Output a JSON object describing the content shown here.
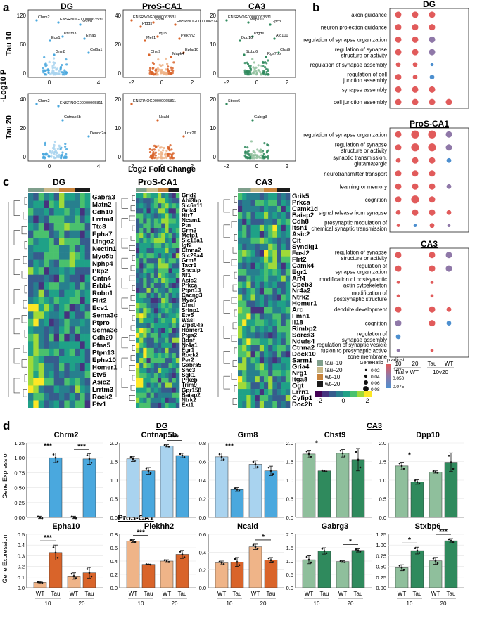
{
  "colors": {
    "dg": "#4aa8de",
    "dg_light": "#a9d3ef",
    "pros": "#d9642a",
    "pros_light": "#efb488",
    "ca3": "#2f8a5d",
    "ca3_light": "#8fbf9c",
    "red": "#e15b5b",
    "purple": "#8f78a8",
    "blue": "#4d8fcf"
  },
  "panels": {
    "a": "a",
    "b": "b",
    "c": "c",
    "d": "d"
  },
  "volcano": {
    "columns": [
      "DG",
      "ProS-CA1",
      "CA3"
    ],
    "rows": [
      "Tau 10",
      "Tau 20"
    ],
    "ylabel": "-Log10 P",
    "xlabel": "Log2 Fold Change",
    "y_ticks_top": [
      [
        "0",
        "60",
        "120"
      ],
      [
        "0",
        "20",
        "40"
      ],
      [
        "0",
        "10",
        "20"
      ]
    ],
    "y_ticks_bottom": [
      [
        "0",
        "20",
        "40"
      ],
      [
        "0",
        "10",
        "20"
      ],
      [
        "0",
        "10",
        "20"
      ]
    ],
    "x_ticks": [
      [
        "0",
        "4"
      ],
      [
        "-2",
        "0",
        "2"
      ],
      [
        "-2",
        "0",
        "2"
      ]
    ],
    "labels": {
      "dg_top": [
        "Chrm2",
        "Pdzrn3",
        "Col6a1",
        "ENSRNOG00000063531",
        "Efna5",
        "Grm8",
        "Sorm1",
        "Ece1"
      ],
      "pros_top": [
        "ENSRNOG00000063531",
        "Iqub",
        "Epha10",
        "Sorm1",
        "Plekhh2",
        "Chst9",
        "ENSRNOG00000065142",
        "Mell1",
        "Mapk4",
        "Ptgds"
      ],
      "ca3_top": [
        "ENSRNOG00000063531",
        "Ptgds",
        "Chst9",
        "Mapk10",
        "Atg101",
        "Stxbp6",
        "Gpc3",
        "Dpp10",
        "Rgs7bp"
      ],
      "dg_bottom": [
        "Chrm2",
        "Cntnap5b",
        "Dennd2a",
        "ENSRNOG00000065811"
      ],
      "pros_bottom": [
        "ENSRNOG00000065811",
        "Ncald",
        "Lrrc26"
      ],
      "ca3_bottom": [
        "Stxbp6",
        "Gabrg3"
      ]
    }
  },
  "go": {
    "sections": [
      {
        "title": "DG",
        "terms": [
          "axon guidance",
          "neuron projection guidance",
          "regulation of synapse organization",
          "regulation of synapse\nstructure or activity",
          "regulation of synapse assembly",
          "regulation of cell\njunction assembly",
          "synapse assembly",
          "cell junction assembly"
        ],
        "dots": [
          [
            "r3",
            "r3",
            "r3",
            null
          ],
          [
            "r3",
            "r3",
            "r3",
            null
          ],
          [
            "r3",
            "r3",
            "p3",
            null
          ],
          [
            "r3",
            "r3",
            "p3",
            null
          ],
          [
            "r2",
            "r2",
            "b1",
            null
          ],
          [
            "r3",
            "r2",
            "b2",
            null
          ],
          [
            "r3",
            "r3",
            "r3",
            null
          ],
          [
            "r3",
            "r3",
            "r3",
            "r3"
          ]
        ]
      },
      {
        "title": "ProS-CA1",
        "terms": [
          "regulation of synapse organization",
          "regulation of synapse\nstructure or activity",
          "synaptic transmission,\nglutamatergic",
          "neurotransmitter transport",
          "learning or memory",
          "cognition",
          "signal release from synapse",
          "presynaptic modulation of\nchemical synaptic transmission"
        ],
        "dots": [
          [
            "r3",
            "r4",
            "r4",
            "p3"
          ],
          [
            "r3",
            "r4",
            "r4",
            "p3"
          ],
          [
            "r2",
            "r3",
            "r3",
            "b2"
          ],
          [
            "r3",
            "r3",
            "r3",
            null
          ],
          [
            "r3",
            "r3",
            "r3",
            "p2"
          ],
          [
            "r3",
            "r4",
            "r3",
            null
          ],
          [
            "r2",
            "r3",
            "r3",
            "r2"
          ],
          [
            "r1",
            "b1",
            "r2",
            "p1"
          ]
        ]
      },
      {
        "title": "CA3",
        "terms": [
          "regulation of synapse\nstructure or activity",
          "regulation of\nsynapse organization",
          "modification of postsynaptic\nactin cytoskeleton",
          "modification of\npostsynaptic structure",
          "dendrite development",
          "cognition",
          "regulation of\nsynapse assembly",
          "regulation of synaptic vesicle\nfusion to presynaptic active\nzone membrane"
        ],
        "dots": [
          [
            "r3",
            null,
            "r3",
            "p3"
          ],
          [
            "r3",
            null,
            "r3",
            "p3"
          ],
          [
            "r1",
            null,
            "r1",
            null
          ],
          [
            "r1",
            null,
            "r1",
            null
          ],
          [
            "r3",
            null,
            "r3",
            "r2"
          ],
          [
            "p3",
            null,
            "r3",
            "b2"
          ],
          [
            "b2",
            null,
            null,
            null
          ],
          [
            "p1",
            null,
            "r1",
            null
          ]
        ]
      }
    ],
    "x_labels": [
      "10",
      "20",
      "Tau",
      "WT"
    ],
    "x_groups": [
      "Tau v WT",
      "10v20"
    ],
    "legend": {
      "gene_ratio_title": "GeneRatio",
      "gene_ratio": [
        "0.02",
        "0.04",
        "0.06",
        "0.08"
      ],
      "padj_title": "p.adjust",
      "padj": [
        "0.025",
        "0.050",
        "0.075"
      ]
    }
  },
  "heatmap": {
    "titles": [
      "DG",
      "ProS-CA1",
      "CA3"
    ],
    "dg_genes": [
      "Gabra3",
      "Matn2",
      "Cdh10",
      "Lrrtm4",
      "Ttc8",
      "Epha7",
      "Lingo2",
      "Nectin1",
      "Myo5b",
      "Nphp4",
      "Pkp2",
      "Cntn4",
      "Erbb4",
      "Robo1",
      "Flrt2",
      "Ece1",
      "Sema3c",
      "Ptpro",
      "Sema3e",
      "Cdh20",
      "Efna5",
      "Ptpn13",
      "Epha10",
      "Homer1",
      "Etv5",
      "Asic2",
      "Lrrtm3",
      "Rock2",
      "Etv1"
    ],
    "pros_genes": [
      "Grid2",
      "Abi3bp",
      "Slc6a11",
      "Grik4",
      "Htr7",
      "Ncam1",
      "Ptn",
      "Grm3",
      "Mctp1",
      "Slc18a1",
      "Igf2",
      "Ctnna2",
      "Slc29a4",
      "Grm8",
      "Tacr1",
      "Sncaip",
      "Nf1",
      "Asic2",
      "Prkca",
      "Ptpn13",
      "Cacng3",
      "Myo6",
      "Chrd",
      "Srinp1",
      "Etv5",
      "Wasl",
      "Zfp804a",
      "Homer1",
      "Ptgs2",
      "Bdnf",
      "Nr4a1",
      "Egr1",
      "Rock2",
      "Per2",
      "Gabra5",
      "Shc3",
      "Sgk1",
      "Prkcb",
      "Trim9",
      "Gpr158",
      "Baiap2",
      "Ntrk2",
      "Ext1"
    ],
    "ca3_genes": [
      "Grik5",
      "Prkca",
      "Camk1d",
      "Baiap2",
      "Cdh8",
      "Itsn1",
      "Asic2",
      "Cit",
      "Syndig1",
      "Fosl2",
      "Flrt2",
      "Camk4",
      "Egr1",
      "Arf4",
      "Cpeb3",
      "Nr4a2",
      "Ntrk2",
      "Homer1",
      "Arc",
      "Fmn1",
      "Il18",
      "Rimbp2",
      "Sorcs3",
      "Ndufs4",
      "Ctnna2",
      "Dock10",
      "Sarm1",
      "Gria4",
      "Nrg1",
      "Itga8",
      "Ogt",
      "Lrrn1",
      "Cyfip1",
      "Doc2b"
    ],
    "legend": {
      "groups": [
        "tau–10",
        "tau–20",
        "wt–10",
        "wt–20"
      ],
      "group_colors": [
        "#7f9f8c",
        "#c9b98a",
        "#c8843c",
        "#1a1a1a"
      ],
      "scale": [
        "-2",
        "0",
        "2"
      ]
    }
  },
  "bars": {
    "ylabel": "Gene Expression",
    "region_labels": [
      "DG",
      "CA3",
      "ProS-CA1"
    ],
    "x_labels": [
      "WT",
      "Tau",
      "WT",
      "Tau"
    ],
    "ages": [
      "10",
      "20"
    ],
    "genes": [
      {
        "name": "Chrm2",
        "region": "dg",
        "values": [
          0.0,
          1.0,
          0.0,
          0.98
        ],
        "errors": [
          0.02,
          0.08,
          0.02,
          0.09
        ],
        "ymax": 1.25,
        "ticks": [
          "0.00",
          "0.25",
          "0.50",
          "0.75",
          "1.00",
          "1.25"
        ],
        "sig": [
          [
            "***",
            0,
            1
          ],
          [
            "***",
            2,
            3
          ]
        ]
      },
      {
        "name": "Cntnap5b",
        "region": "dg",
        "values": [
          1.57,
          1.25,
          1.92,
          1.66
        ],
        "errors": [
          0.07,
          0.09,
          0.03,
          0.06
        ],
        "ymax": 2.0,
        "ticks": [
          "0.0",
          "0.5",
          "1.0",
          "1.5",
          "2.0"
        ],
        "sig": [
          [
            "***",
            2,
            3
          ]
        ]
      },
      {
        "name": "Grm8",
        "region": "dg",
        "values": [
          0.65,
          0.3,
          0.57,
          0.5
        ],
        "errors": [
          0.04,
          0.02,
          0.04,
          0.05
        ],
        "ymax": 0.8,
        "ticks": [
          "0.0",
          "0.2",
          "0.4",
          "0.6",
          "0.8"
        ],
        "sig": [
          [
            "***",
            0,
            1
          ]
        ]
      },
      {
        "name": "Chst9",
        "region": "ca3",
        "values": [
          1.7,
          1.25,
          1.72,
          1.55
        ],
        "errors": [
          0.1,
          0.02,
          0.1,
          0.3
        ],
        "ymax": 2.0,
        "ticks": [
          "0.0",
          "0.5",
          "1.0",
          "1.5",
          "2.0"
        ],
        "sig": [
          [
            "*",
            0,
            1
          ]
        ]
      },
      {
        "name": "Dpp10",
        "region": "ca3",
        "values": [
          1.38,
          0.95,
          1.22,
          1.48
        ],
        "errors": [
          0.1,
          0.06,
          0.03,
          0.25
        ],
        "ymax": 2.0,
        "ticks": [
          "0.0",
          "0.5",
          "1.0",
          "1.5",
          "2.0"
        ],
        "sig": [
          [
            "*",
            0,
            1
          ]
        ]
      },
      {
        "name": "Epha10",
        "region": "pros",
        "values": [
          0.05,
          0.33,
          0.11,
          0.14
        ],
        "errors": [
          0.004,
          0.07,
          0.03,
          0.05
        ],
        "ymax": 0.5,
        "ticks": [
          "0.0",
          "0.1",
          "0.2",
          "0.3",
          "0.4",
          "0.5"
        ],
        "sig": [
          [
            "***",
            0,
            1
          ]
        ]
      },
      {
        "name": "Plekhh2",
        "region": "pros",
        "values": [
          0.7,
          0.35,
          0.4,
          0.5
        ],
        "errors": [
          0.02,
          0.005,
          0.02,
          0.06
        ],
        "ymax": 0.8,
        "ticks": [
          "0.0",
          "0.2",
          "0.4",
          "0.6",
          "0.8"
        ],
        "sig": [
          [
            "***",
            0,
            1
          ]
        ]
      },
      {
        "name": "Ncald",
        "region": "pros",
        "values": [
          0.28,
          0.29,
          0.46,
          0.31
        ],
        "errors": [
          0.02,
          0.05,
          0.03,
          0.03
        ],
        "ymax": 0.6,
        "ticks": [
          "0.0",
          "0.2",
          "0.4",
          "0.6"
        ],
        "sig": [
          [
            "*",
            2,
            3
          ]
        ]
      },
      {
        "name": "Gabrg3",
        "region": "ca3",
        "values": [
          1.05,
          1.38,
          0.98,
          1.4
        ],
        "errors": [
          0.15,
          0.12,
          0.03,
          0.06
        ],
        "ymax": 2.0,
        "ticks": [
          "0.0",
          "0.5",
          "1.0",
          "1.5",
          "2.0"
        ],
        "sig": [
          [
            "*",
            2,
            3
          ]
        ]
      },
      {
        "name": "Stxbp6",
        "region": "ca3",
        "values": [
          0.47,
          0.87,
          0.63,
          1.1
        ],
        "errors": [
          0.07,
          0.08,
          0.08,
          0.05
        ],
        "ymax": 1.25,
        "ticks": [
          "0.00",
          "0.25",
          "0.50",
          "0.75",
          "1.00",
          "1.25"
        ],
        "sig": [
          [
            "*",
            0,
            1
          ],
          [
            "***",
            2,
            3
          ]
        ]
      }
    ]
  }
}
